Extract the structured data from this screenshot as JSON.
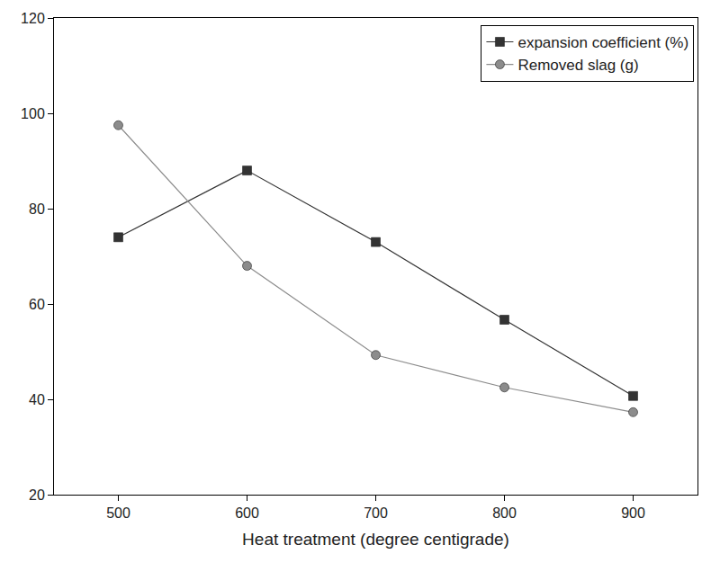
{
  "chart_data": {
    "type": "line",
    "x_label": "Heat treatment (degree centigrade)",
    "x": [
      500,
      600,
      700,
      800,
      900
    ],
    "series": [
      {
        "name": "expansion coefficient (%)",
        "color": "#333333",
        "marker": "square",
        "line_style": "solid",
        "values": [
          74,
          88,
          73,
          56.7,
          40.7
        ]
      },
      {
        "name": "Removed slag (g)",
        "color": "#8c8c8c",
        "marker": "circle",
        "line_style": "solid",
        "values": [
          97.5,
          68,
          49.3,
          42.5,
          37.3
        ]
      }
    ],
    "xlim": [
      450,
      950
    ],
    "xticks": [
      500,
      600,
      700,
      800,
      900
    ],
    "ylim": [
      20,
      120
    ],
    "yticks": [
      20,
      40,
      60,
      80,
      100,
      120
    ],
    "grid": false,
    "legend": "upper right"
  }
}
